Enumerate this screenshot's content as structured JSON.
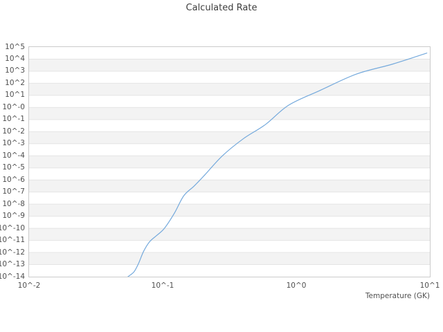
{
  "chart_data": {
    "type": "line",
    "title": "Calculated Rate",
    "xlabel": "Temperature (GK)",
    "ylabel": "",
    "x_scale": "log10",
    "y_scale": "log10",
    "xlim_log10": [
      -2,
      1
    ],
    "ylim_log10": [
      -14,
      5
    ],
    "x_tick_labels": [
      "10^-2",
      "10^-1",
      "10^0",
      "10^1"
    ],
    "y_tick_labels": [
      "10^5",
      "10^4",
      "10^3",
      "10^2",
      "10^1",
      "10^-0",
      "10^-1",
      "10^-2",
      "10^-3",
      "10^-4",
      "10^-5",
      "10^-6",
      "10^-7",
      "10^-8",
      "10^-9",
      "10^-10",
      "10^-11",
      "10^-12",
      "10^-13",
      "10^-14"
    ],
    "grid": "horizontal-decade-bands",
    "legend": "none",
    "series": [
      {
        "name": "calculated-rate",
        "points": [
          {
            "T": 0.055,
            "log10_rate": -14.0
          },
          {
            "T": 0.061,
            "log10_rate": -13.6
          },
          {
            "T": 0.066,
            "log10_rate": -12.9
          },
          {
            "T": 0.072,
            "log10_rate": -11.9
          },
          {
            "T": 0.08,
            "log10_rate": -11.1
          },
          {
            "T": 0.09,
            "log10_rate": -10.6
          },
          {
            "T": 0.103,
            "log10_rate": -10.0
          },
          {
            "T": 0.123,
            "log10_rate": -8.7
          },
          {
            "T": 0.144,
            "log10_rate": -7.3
          },
          {
            "T": 0.172,
            "log10_rate": -6.5
          },
          {
            "T": 0.206,
            "log10_rate": -5.6
          },
          {
            "T": 0.28,
            "log10_rate": -4.0
          },
          {
            "T": 0.4,
            "log10_rate": -2.6
          },
          {
            "T": 0.59,
            "log10_rate": -1.4
          },
          {
            "T": 0.88,
            "log10_rate": 0.2
          },
          {
            "T": 1.5,
            "log10_rate": 1.4
          },
          {
            "T": 2.8,
            "log10_rate": 2.75
          },
          {
            "T": 5.3,
            "log10_rate": 3.6
          },
          {
            "T": 9.5,
            "log10_rate": 4.5
          }
        ]
      }
    ],
    "colors": {
      "line": "#74a9dc",
      "band": "#f3f3f3",
      "gridline": "#e4e4e4",
      "spine": "#cbcbcb",
      "tick_text": "#4f4f4f",
      "title_text": "#3d3d3d"
    }
  }
}
